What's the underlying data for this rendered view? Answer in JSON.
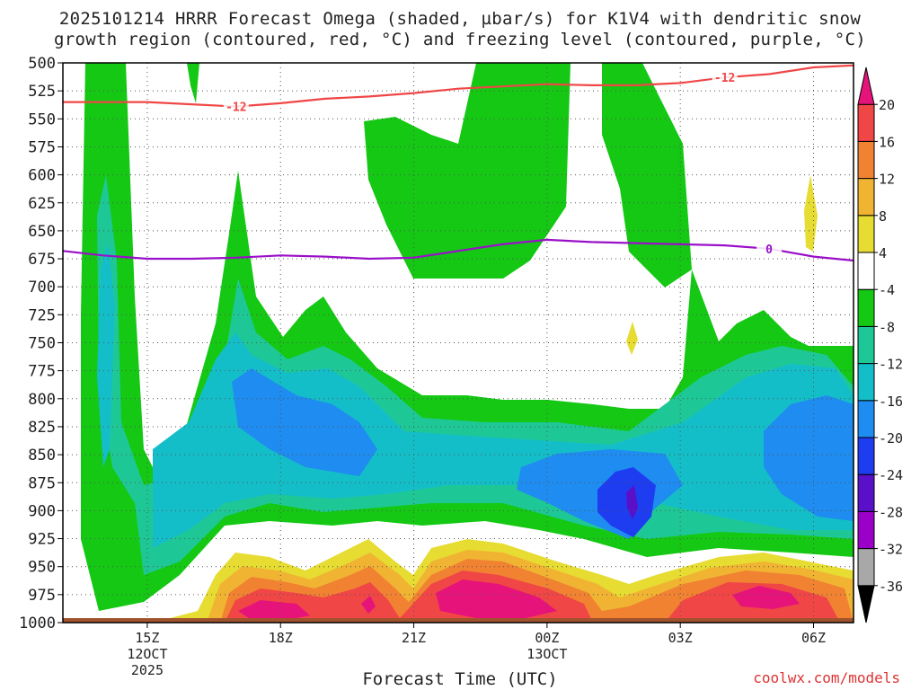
{
  "title_line1": "2025101214 HRRR Forecast Omega (shaded, µbar/s) for K1V4 with dendritic snow",
  "title_line2": "growth region (contoured, red, °C) and freezing level (contoured, purple, °C)",
  "xlabel": "Forecast Time (UTC)",
  "watermark": "coolwx.com/models",
  "chart_data": {
    "type": "contour",
    "title": "2025101214 HRRR Forecast Omega (shaded, µbar/s) for K1V4 with dendritic snow growth region (contoured, red, °C) and freezing level (contoured, purple, °C)",
    "xlabel": "Forecast Time (UTC)",
    "ylabel": "",
    "x_range_hours": [
      13.1,
      30.9
    ],
    "y_range_hPa": [
      500,
      1000
    ],
    "y_inverted": true,
    "grid": true,
    "y_ticks": [
      500,
      525,
      550,
      575,
      600,
      625,
      650,
      675,
      700,
      725,
      750,
      775,
      800,
      825,
      850,
      875,
      900,
      925,
      950,
      975,
      1000
    ],
    "x_ticks": [
      {
        "hour": 15,
        "lines": [
          "15Z",
          "12OCT",
          "2025"
        ]
      },
      {
        "hour": 18,
        "lines": [
          "18Z"
        ]
      },
      {
        "hour": 21,
        "lines": [
          "21Z"
        ]
      },
      {
        "hour": 24,
        "lines": [
          "00Z",
          "13OCT"
        ]
      },
      {
        "hour": 27,
        "lines": [
          "03Z"
        ]
      },
      {
        "hour": 30,
        "lines": [
          "06Z"
        ]
      }
    ],
    "colorbar": {
      "levels": [
        -36,
        -32,
        -28,
        -24,
        -20,
        -16,
        -12,
        -8,
        -4,
        4,
        8,
        12,
        16,
        20
      ],
      "colors": [
        "#000000",
        "#a8a8a8",
        "#9a00c8",
        "#5a10c8",
        "#1e3cf0",
        "#1e8cf0",
        "#14bec8",
        "#1ec896",
        "#14c814",
        "#ffffff",
        "#e6dc32",
        "#f0b432",
        "#f08232",
        "#f04646",
        "#e6147a"
      ],
      "tick_labels": [
        "20",
        "16",
        "12",
        "8",
        "4",
        "-4",
        "-8",
        "-12",
        "-16",
        "-20",
        "-24",
        "-28",
        "-32",
        "-36"
      ]
    },
    "contours": [
      {
        "name": "dendritic",
        "label": "-12",
        "color": "#f04646",
        "points": [
          [
            13.1,
            535
          ],
          [
            14,
            535
          ],
          [
            15,
            535
          ],
          [
            16,
            537
          ],
          [
            17,
            539
          ],
          [
            18,
            536
          ],
          [
            19,
            532
          ],
          [
            20,
            530
          ],
          [
            21,
            527
          ],
          [
            22,
            523
          ],
          [
            23,
            521
          ],
          [
            24,
            519
          ],
          [
            25,
            520
          ],
          [
            26,
            520
          ],
          [
            27,
            518
          ],
          [
            28,
            513
          ],
          [
            29,
            510
          ],
          [
            30,
            504
          ],
          [
            31,
            502
          ]
        ]
      },
      {
        "name": "freezing",
        "label": "0",
        "color": "#9a10c8",
        "points": [
          [
            13.1,
            668
          ],
          [
            14,
            672
          ],
          [
            15,
            675
          ],
          [
            16,
            675
          ],
          [
            17,
            674
          ],
          [
            18,
            672
          ],
          [
            19,
            673
          ],
          [
            20,
            675
          ],
          [
            21,
            674
          ],
          [
            22,
            668
          ],
          [
            23,
            662
          ],
          [
            24,
            658
          ],
          [
            25,
            660
          ],
          [
            26,
            661
          ],
          [
            27,
            662
          ],
          [
            28,
            663
          ],
          [
            29,
            666
          ],
          [
            30,
            673
          ],
          [
            31,
            677
          ]
        ]
      }
    ]
  }
}
